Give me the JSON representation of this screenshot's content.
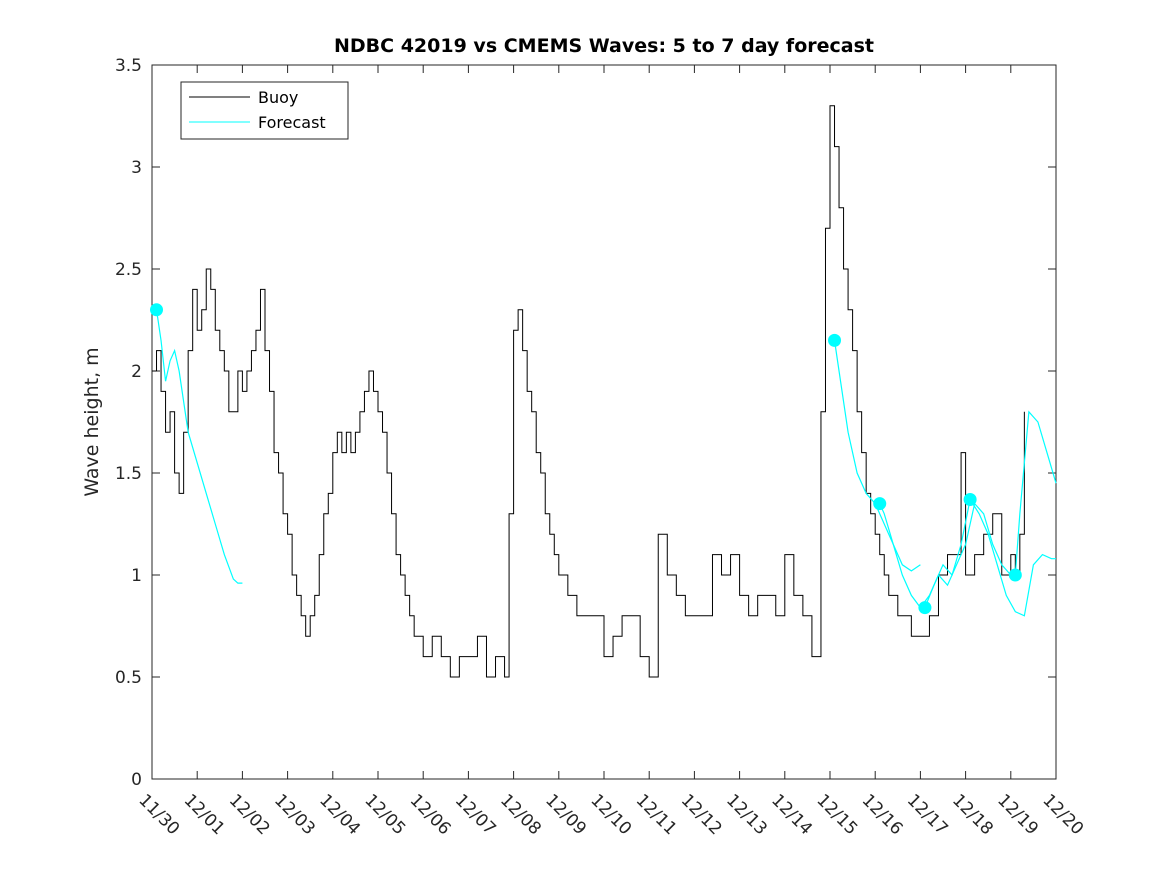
{
  "chart_data": {
    "type": "line",
    "title": "NDBC 42019 vs CMEMS Waves: 5 to 7 day forecast",
    "xlabel": "",
    "ylabel": "Wave height, m",
    "xlim": [
      0,
      20
    ],
    "ylim": [
      0,
      3.5
    ],
    "x_ticks": [
      0,
      1,
      2,
      3,
      4,
      5,
      6,
      7,
      8,
      9,
      10,
      11,
      12,
      13,
      14,
      15,
      16,
      17,
      18,
      19,
      20
    ],
    "x_tick_labels": [
      "11/30",
      "12/01",
      "12/02",
      "12/03",
      "12/04",
      "12/05",
      "12/06",
      "12/07",
      "12/08",
      "12/09",
      "12/10",
      "12/11",
      "12/12",
      "12/13",
      "12/14",
      "12/15",
      "12/16",
      "12/17",
      "12/18",
      "12/19",
      "12/20"
    ],
    "y_ticks": [
      0,
      0.5,
      1,
      1.5,
      2,
      2.5,
      3,
      3.5
    ],
    "y_tick_labels": [
      "0",
      "0.5",
      "1",
      "1.5",
      "2",
      "2.5",
      "3",
      "3.5"
    ],
    "legend": {
      "position": "top-left",
      "entries": [
        "Buoy",
        "Forecast"
      ]
    },
    "colors": {
      "buoy": "#000000",
      "forecast": "#00FFFF"
    },
    "series": [
      {
        "name": "Buoy",
        "x": [
          0,
          0.1,
          0.2,
          0.3,
          0.4,
          0.5,
          0.6,
          0.7,
          0.8,
          0.9,
          1.0,
          1.1,
          1.2,
          1.3,
          1.4,
          1.5,
          1.6,
          1.7,
          1.8,
          1.9,
          2.0,
          2.1,
          2.2,
          2.3,
          2.4,
          2.5,
          2.6,
          2.7,
          2.8,
          2.9,
          3.0,
          3.1,
          3.2,
          3.3,
          3.4,
          3.5,
          3.6,
          3.7,
          3.8,
          3.9,
          4.0,
          4.1,
          4.2,
          4.3,
          4.4,
          4.5,
          4.6,
          4.7,
          4.8,
          4.9,
          5.0,
          5.1,
          5.2,
          5.3,
          5.4,
          5.5,
          5.6,
          5.7,
          5.8,
          5.9,
          6.0,
          6.2,
          6.4,
          6.6,
          6.8,
          7.0,
          7.2,
          7.4,
          7.6,
          7.8,
          7.9,
          8.0,
          8.1,
          8.2,
          8.3,
          8.4,
          8.5,
          8.6,
          8.7,
          8.8,
          8.9,
          9.0,
          9.2,
          9.4,
          9.6,
          9.8,
          10.0,
          10.2,
          10.4,
          10.6,
          10.8,
          11.0,
          11.2,
          11.4,
          11.6,
          11.8,
          12.0,
          12.2,
          12.4,
          12.6,
          12.8,
          13.0,
          13.2,
          13.4,
          13.6,
          13.8,
          14.0,
          14.2,
          14.4,
          14.6,
          14.7,
          14.8,
          14.9,
          15.0,
          15.1,
          15.2,
          15.3,
          15.4,
          15.5,
          15.6,
          15.7,
          15.8,
          15.9,
          16.0,
          16.1,
          16.2,
          16.3,
          16.4,
          16.5,
          16.6,
          16.7,
          16.8,
          16.9,
          17.0,
          17.2,
          17.4,
          17.6,
          17.8,
          17.9,
          18.0,
          18.2,
          18.4,
          18.6,
          18.8,
          19.0,
          19.1,
          19.2,
          19.3
        ],
        "values": [
          2.0,
          2.1,
          1.9,
          1.7,
          1.8,
          1.5,
          1.4,
          1.7,
          2.1,
          2.4,
          2.2,
          2.3,
          2.5,
          2.4,
          2.2,
          2.1,
          2.0,
          1.8,
          1.8,
          2.0,
          1.9,
          2.0,
          2.1,
          2.2,
          2.4,
          2.1,
          1.9,
          1.6,
          1.5,
          1.3,
          1.2,
          1.0,
          0.9,
          0.8,
          0.7,
          0.8,
          0.9,
          1.1,
          1.3,
          1.4,
          1.6,
          1.7,
          1.6,
          1.7,
          1.6,
          1.7,
          1.8,
          1.9,
          2.0,
          1.9,
          1.8,
          1.7,
          1.5,
          1.3,
          1.1,
          1.0,
          0.9,
          0.8,
          0.7,
          0.7,
          0.6,
          0.7,
          0.6,
          0.5,
          0.6,
          0.6,
          0.7,
          0.5,
          0.6,
          0.5,
          1.3,
          2.2,
          2.3,
          2.1,
          1.9,
          1.8,
          1.6,
          1.5,
          1.3,
          1.2,
          1.1,
          1.0,
          0.9,
          0.8,
          0.8,
          0.8,
          0.6,
          0.7,
          0.8,
          0.8,
          0.6,
          0.5,
          1.2,
          1.0,
          0.9,
          0.8,
          0.8,
          0.8,
          1.1,
          1.0,
          1.1,
          0.9,
          0.8,
          0.9,
          0.9,
          0.8,
          1.1,
          0.9,
          0.8,
          0.6,
          0.6,
          1.8,
          2.7,
          3.3,
          3.1,
          2.8,
          2.5,
          2.3,
          2.1,
          1.8,
          1.6,
          1.4,
          1.3,
          1.2,
          1.1,
          1.0,
          0.9,
          0.9,
          0.8,
          0.8,
          0.8,
          0.7,
          0.7,
          0.7,
          0.8,
          1.0,
          1.1,
          1.1,
          1.6,
          1.0,
          1.1,
          1.2,
          1.3,
          1.0,
          1.1,
          1.0,
          1.2,
          1.8
        ]
      },
      {
        "name": "Forecast",
        "segments": [
          {
            "x": [
              0.1,
              0.2,
              0.3,
              0.4,
              0.5,
              0.6,
              0.8,
              1.0,
              1.2,
              1.4,
              1.6,
              1.8,
              1.9,
              2.0
            ],
            "values": [
              2.3,
              2.15,
              1.95,
              2.05,
              2.1,
              2.0,
              1.7,
              1.55,
              1.4,
              1.25,
              1.1,
              0.98,
              0.96,
              0.96
            ]
          },
          {
            "x": [
              15.1,
              15.2,
              15.4,
              15.6,
              15.8,
              16.0,
              16.2,
              16.4,
              16.6,
              16.8,
              17.0
            ],
            "values": [
              2.15,
              2.0,
              1.7,
              1.5,
              1.4,
              1.35,
              1.25,
              1.15,
              1.05,
              1.02,
              1.05
            ]
          },
          {
            "x": [
              16.1,
              16.2,
              16.4,
              16.6,
              16.8,
              17.0,
              17.2,
              17.4,
              17.6,
              17.8,
              18.0,
              18.2,
              18.4,
              18.6,
              18.8,
              19.0,
              19.1,
              19.2,
              19.4,
              19.6,
              19.8,
              20.0
            ],
            "values": [
              1.35,
              1.3,
              1.15,
              1.0,
              0.9,
              0.84,
              0.9,
              1.0,
              0.95,
              1.05,
              1.15,
              1.35,
              1.3,
              1.15,
              1.05,
              1.0,
              1.0,
              1.3,
              1.8,
              1.75,
              1.6,
              1.45
            ]
          },
          {
            "x": [
              17.1,
              17.3,
              17.5,
              17.7,
              17.9,
              18.1,
              18.3,
              18.5,
              18.7,
              18.9,
              19.1,
              19.3,
              19.5,
              19.7,
              19.9,
              20.0
            ],
            "values": [
              0.84,
              0.95,
              1.05,
              1.0,
              1.15,
              1.37,
              1.3,
              1.2,
              1.05,
              0.9,
              0.82,
              0.8,
              1.05,
              1.1,
              1.08,
              1.08
            ]
          }
        ],
        "markers": {
          "x": [
            0.1,
            15.1,
            16.1,
            17.1,
            18.1,
            19.1
          ],
          "values": [
            2.3,
            2.15,
            1.35,
            0.84,
            1.37,
            1.0
          ]
        }
      }
    ]
  }
}
